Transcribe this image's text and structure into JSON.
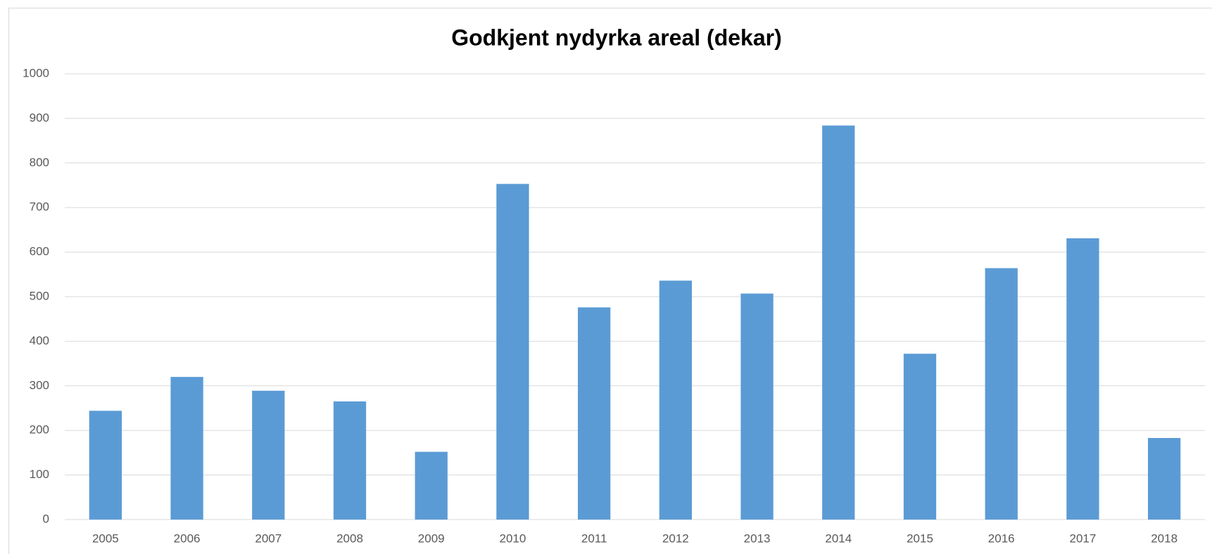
{
  "chart_data": {
    "type": "bar",
    "title": "Godkjent nydyrka areal (dekar)",
    "categories": [
      "2005",
      "2006",
      "2007",
      "2008",
      "2009",
      "2010",
      "2011",
      "2012",
      "2013",
      "2014",
      "2015",
      "2016",
      "2017",
      "2018"
    ],
    "values": [
      244,
      320,
      289,
      265,
      152,
      753,
      476,
      536,
      507,
      884,
      372,
      564,
      631,
      183
    ],
    "color": "#5b9bd5",
    "ylim": [
      0,
      1000
    ],
    "yticks": [
      0,
      100,
      200,
      300,
      400,
      500,
      600,
      700,
      800,
      900,
      1000
    ],
    "grid": true
  }
}
